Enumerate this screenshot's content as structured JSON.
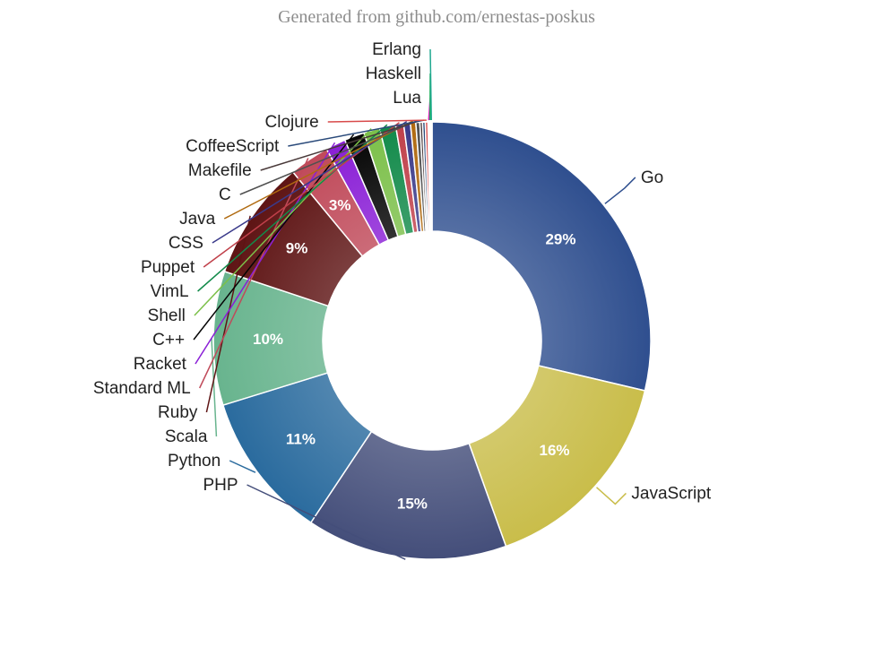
{
  "title": "Generated from github.com/ernestas-poskus",
  "chart_data": {
    "type": "pie",
    "donut": true,
    "categories": [
      "Go",
      "JavaScript",
      "PHP",
      "Python",
      "Scala",
      "Ruby",
      "Standard ML",
      "Racket",
      "C++",
      "Shell",
      "VimL",
      "Puppet",
      "CSS",
      "Java",
      "C",
      "Makefile",
      "CoffeeScript",
      "Clojure",
      "Lua",
      "Haskell",
      "Erlang"
    ],
    "values": [
      29,
      16,
      15,
      11,
      10,
      9,
      3,
      1.5,
      1.5,
      1.2,
      1.2,
      0.6,
      0.5,
      0.4,
      0.3,
      0.2,
      0.2,
      0.2,
      0.1,
      0.1,
      0.1
    ],
    "data_labels": [
      "29%",
      "16%",
      "15%",
      "11%",
      "10%",
      "9%",
      "3%",
      "",
      "",
      "",
      "",
      "",
      "",
      "",
      "",
      "",
      "",
      "",
      "",
      "",
      ""
    ],
    "colors": [
      "#2f4f8f",
      "#c9bd4a",
      "#444e7a",
      "#2a6b9e",
      "#68b48e",
      "#5e1414",
      "#c04a5a",
      "#8a1fd6",
      "#050505",
      "#7cc04a",
      "#128a4a",
      "#c0404a",
      "#3a3a8a",
      "#b06a10",
      "#505050",
      "#4a3a3a",
      "#2a4a7a",
      "#d84a4a",
      "#e020c0",
      "#20b060",
      "#20a890"
    ]
  }
}
